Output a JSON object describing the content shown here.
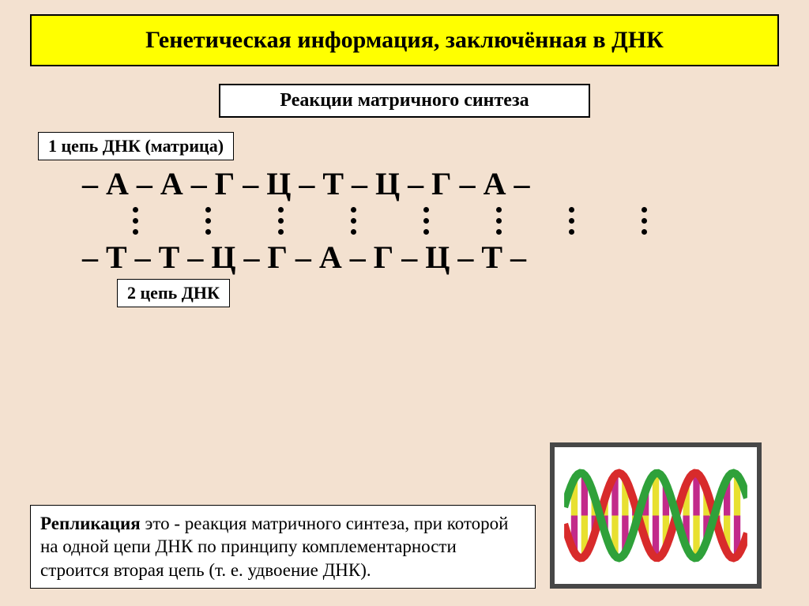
{
  "colors": {
    "slide_bg": "#f3e1d0",
    "title_bg": "#ffff00",
    "title_border": "#000000",
    "title_text": "#000000",
    "box_bg": "#ffffff",
    "box_border": "#000000",
    "box_text": "#000000",
    "strand_text": "#000000",
    "bond_dot": "#000000",
    "image_border": "#474747",
    "helix_red": "#d82b2b",
    "helix_green": "#2fa13a",
    "helix_yellow": "#e8e030",
    "helix_magenta": "#c22a8a",
    "helix_white": "#ffffff"
  },
  "title": "Генетическая информация, заключённая в ДНК",
  "subtitle": "Реакции матричного синтеза",
  "label_strand1": "1 цепь ДНК (матрица)",
  "label_strand2": "2 цепь ДНК",
  "dna": {
    "strand1_bases": [
      "А",
      "А",
      "Г",
      "Ц",
      "Т",
      "Ц",
      "Г",
      "А"
    ],
    "strand2_bases": [
      "Т",
      "Т",
      "Ц",
      "Г",
      "А",
      "Г",
      "Ц",
      "Т"
    ],
    "bond_dots_per_pair": 3,
    "separator": " – "
  },
  "definition": {
    "term": "Репликация",
    "rest": " это - реакция матричного синтеза, при которой на одной цепи ДНК  по принципу комплементарности строится вторая цепь (т. е. удвоение ДНК)."
  },
  "typography": {
    "title_fontsize": 30,
    "subtitle_fontsize": 24,
    "label_fontsize": 22,
    "strand_fontsize": 40,
    "definition_fontsize": 23
  }
}
